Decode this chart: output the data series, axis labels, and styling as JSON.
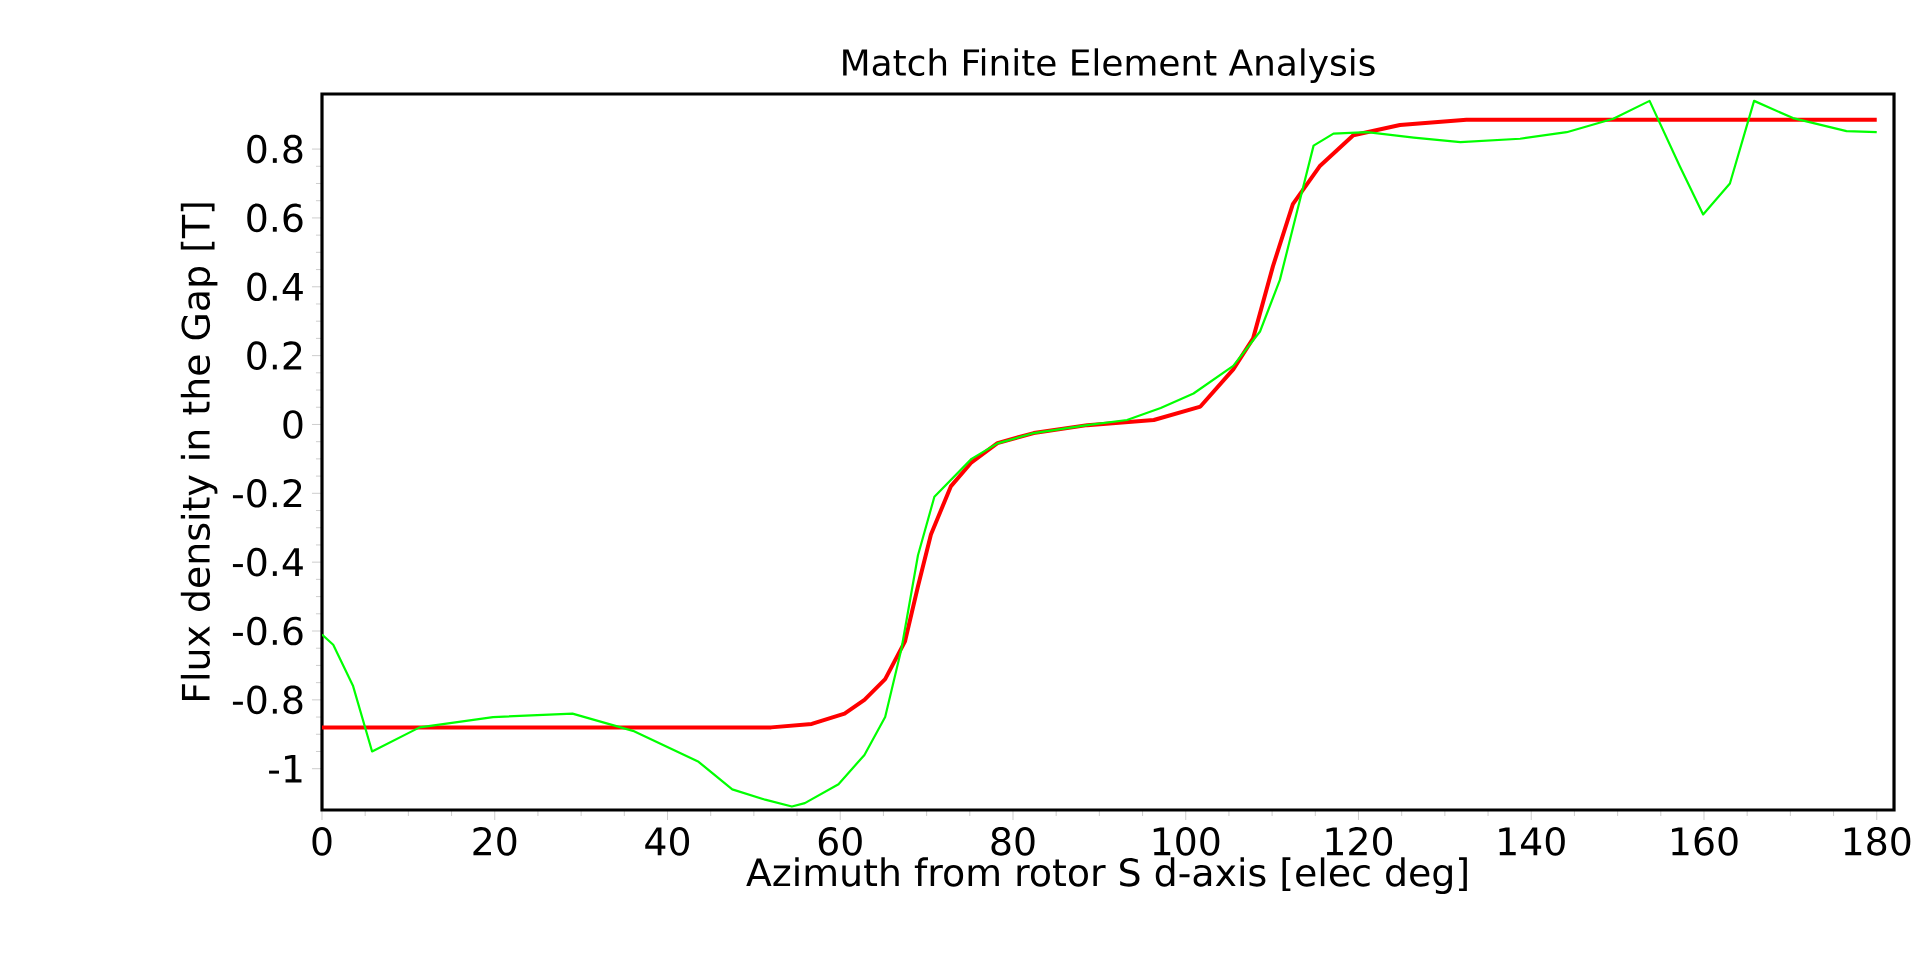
{
  "chart_data": {
    "type": "line",
    "title": "Match Finite Element Analysis",
    "xlabel": "Azimuth from rotor S d-axis [elec deg]",
    "ylabel": "Flux density in the Gap [T]",
    "xlim": [
      0,
      182
    ],
    "ylim": [
      -1.12,
      0.96
    ],
    "xticks": [
      0,
      20,
      40,
      60,
      80,
      100,
      120,
      140,
      160,
      180
    ],
    "yticks": [
      -1,
      -0.8,
      -0.6,
      -0.4,
      -0.2,
      0,
      0.2,
      0.4,
      0.6,
      0.8
    ],
    "grid": false,
    "line_style": "solid",
    "series": [
      {
        "color": "#ff0000",
        "x": [
          0,
          52,
          56.7,
          60.5,
          62.8,
          65.2,
          67.5,
          69,
          70.5,
          72.8,
          75.2,
          78.2,
          82.4,
          88.6,
          96.3,
          101.7,
          105.5,
          107.8,
          110.1,
          112.4,
          115.5,
          119.4,
          124.8,
          132.5,
          180
        ],
        "values": [
          -0.88,
          -0.88,
          -0.87,
          -0.84,
          -0.8,
          -0.74,
          -0.63,
          -0.47,
          -0.32,
          -0.18,
          -0.11,
          -0.054,
          -0.025,
          -0.002,
          0.013,
          0.052,
          0.16,
          0.25,
          0.46,
          0.64,
          0.75,
          0.84,
          0.87,
          0.885,
          0.885
        ]
      },
      {
        "color": "#00ff00",
        "x": [
          0,
          1.3,
          3.6,
          5.8,
          11.3,
          19.8,
          29,
          36,
          43.6,
          47.5,
          51.3,
          54.4,
          55.9,
          59.8,
          62.8,
          65.2,
          67.1,
          69,
          70.9,
          75.2,
          78.2,
          82.4,
          88.6,
          93.2,
          97.1,
          100.9,
          105.5,
          108.6,
          110.9,
          112.9,
          114.8,
          117.1,
          121,
          126.4,
          131.8,
          138.7,
          144.1,
          149.5,
          153.7,
          157.2,
          159.9,
          163,
          165.8,
          170.3,
          176.5,
          180
        ],
        "values": [
          -0.61,
          -0.64,
          -0.76,
          -0.95,
          -0.88,
          -0.85,
          -0.84,
          -0.89,
          -0.98,
          -1.06,
          -1.09,
          -1.11,
          -1.1,
          -1.045,
          -0.96,
          -0.85,
          -0.65,
          -0.38,
          -0.21,
          -0.1,
          -0.055,
          -0.025,
          -0.002,
          0.013,
          0.048,
          0.09,
          0.17,
          0.27,
          0.42,
          0.62,
          0.81,
          0.845,
          0.849,
          0.833,
          0.82,
          0.83,
          0.849,
          0.888,
          0.94,
          0.75,
          0.61,
          0.7,
          0.94,
          0.89,
          0.852,
          0.849
        ]
      }
    ]
  }
}
